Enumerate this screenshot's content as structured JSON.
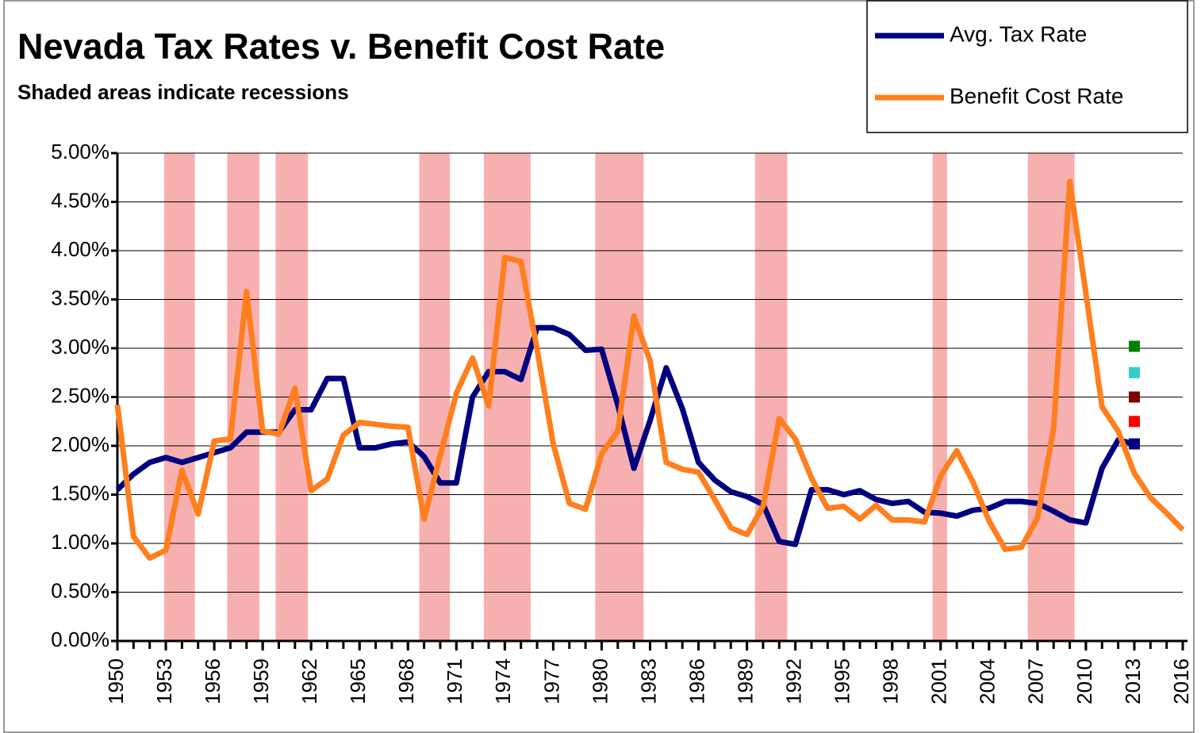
{
  "chart_data": {
    "type": "line",
    "title": "Nevada Tax Rates v. Benefit Cost Rate",
    "subtitle": "Shaded areas indicate recessions",
    "x": [
      1950,
      1951,
      1952,
      1953,
      1954,
      1955,
      1956,
      1957,
      1958,
      1959,
      1960,
      1961,
      1962,
      1963,
      1964,
      1965,
      1966,
      1967,
      1968,
      1969,
      1970,
      1971,
      1972,
      1973,
      1974,
      1975,
      1976,
      1977,
      1978,
      1979,
      1980,
      1981,
      1982,
      1983,
      1984,
      1985,
      1986,
      1987,
      1988,
      1989,
      1990,
      1991,
      1992,
      1993,
      1994,
      1995,
      1996,
      1997,
      1998,
      1999,
      2000,
      2001,
      2002,
      2003,
      2004,
      2005,
      2006,
      2007,
      2008,
      2009,
      2010,
      2011,
      2012,
      2013,
      2014,
      2015,
      2016
    ],
    "series": [
      {
        "name": "Avg. Tax Rate",
        "color": "#000080",
        "values": [
          1.55,
          1.71,
          1.83,
          1.88,
          1.83,
          1.88,
          1.93,
          1.98,
          2.14,
          2.14,
          2.14,
          2.37,
          2.37,
          2.69,
          2.69,
          1.98,
          1.98,
          2.02,
          2.04,
          1.89,
          1.62,
          1.62,
          2.5,
          2.76,
          2.76,
          2.68,
          3.21,
          3.21,
          3.14,
          2.98,
          2.99,
          2.42,
          1.77,
          2.26,
          2.8,
          2.38,
          1.83,
          1.65,
          1.53,
          1.48,
          1.4,
          1.02,
          0.99,
          1.55,
          1.55,
          1.5,
          1.54,
          1.45,
          1.41,
          1.43,
          1.32,
          1.31,
          1.28,
          1.34,
          1.36,
          1.43,
          1.43,
          1.41,
          1.33,
          1.24,
          1.21,
          1.77,
          2.06,
          2.02,
          null,
          null,
          null
        ]
      },
      {
        "name": "Benefit Cost Rate",
        "color": "#ff7f1f",
        "values": [
          2.42,
          1.07,
          0.85,
          0.93,
          1.75,
          1.3,
          2.05,
          2.07,
          3.58,
          2.15,
          2.12,
          2.59,
          1.54,
          1.66,
          2.11,
          2.24,
          2.22,
          2.2,
          2.19,
          1.25,
          1.9,
          2.54,
          2.9,
          2.41,
          3.93,
          3.89,
          2.99,
          2.02,
          1.41,
          1.35,
          1.92,
          2.15,
          3.33,
          2.87,
          1.83,
          1.76,
          1.73,
          1.45,
          1.16,
          1.09,
          1.38,
          2.28,
          2.07,
          1.67,
          1.36,
          1.38,
          1.25,
          1.39,
          1.24,
          1.24,
          1.22,
          1.69,
          1.95,
          1.63,
          1.23,
          0.94,
          0.96,
          1.26,
          2.18,
          4.71,
          3.56,
          2.4,
          2.15,
          1.72,
          1.47,
          1.31,
          1.14
        ]
      }
    ],
    "points": [
      {
        "color": "#008000",
        "x": 2013,
        "value": 3.02
      },
      {
        "color": "#33cccc",
        "x": 2013,
        "value": 2.75
      },
      {
        "color": "#800000",
        "x": 2013,
        "value": 2.5
      },
      {
        "color": "#ff0000",
        "x": 2013,
        "value": 2.25
      },
      {
        "color": "#000080",
        "x": 2013,
        "value": 2.02
      }
    ],
    "recessions": [
      [
        1952.9,
        1954.8
      ],
      [
        1956.8,
        1958.8
      ],
      [
        1959.8,
        1961.8
      ],
      [
        1968.7,
        1970.6
      ],
      [
        1972.7,
        1975.6
      ],
      [
        1979.6,
        1982.6
      ],
      [
        1989.5,
        1991.5
      ],
      [
        2000.5,
        2001.4
      ],
      [
        2006.4,
        2009.3
      ]
    ],
    "recession_color": "#f7b0b0",
    "xlim": [
      1950,
      2016
    ],
    "xticks": [
      1950,
      1953,
      1956,
      1959,
      1962,
      1965,
      1968,
      1971,
      1974,
      1977,
      1980,
      1983,
      1986,
      1989,
      1992,
      1995,
      1998,
      2001,
      2004,
      2007,
      2010,
      2013,
      2016
    ],
    "ylim": [
      0,
      5
    ],
    "yticks": [
      {
        "value": 0,
        "label": "0.00%"
      },
      {
        "value": 0.5,
        "label": "0.50%"
      },
      {
        "value": 1,
        "label": "1.00%"
      },
      {
        "value": 1.5,
        "label": "1.50%"
      },
      {
        "value": 2,
        "label": "2.00%"
      },
      {
        "value": 2.5,
        "label": "2.50%"
      },
      {
        "value": 3,
        "label": "3.00%"
      },
      {
        "value": 3.5,
        "label": "3.50%"
      },
      {
        "value": 4,
        "label": "4.00%"
      },
      {
        "value": 4.5,
        "label": "4.50%"
      },
      {
        "value": 5,
        "label": "5.00%"
      }
    ],
    "grid": true
  }
}
